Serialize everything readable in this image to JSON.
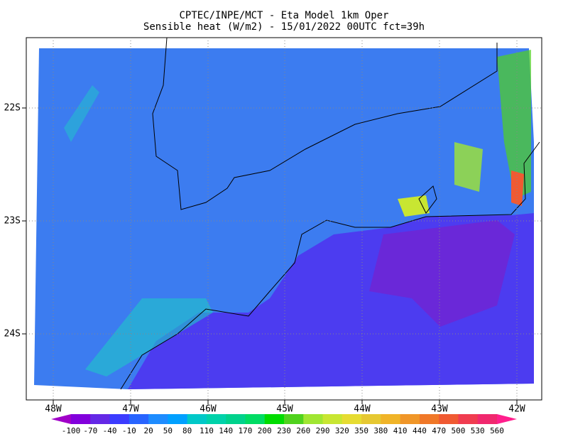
{
  "title": [
    "CPTEC/INPE/MCT -  Eta Model 1km Oper",
    "Sensible heat (W/m2) - 15/01/2022 00UTC fct=39h"
  ],
  "lat_labels": [
    "22S",
    "23S",
    "24S"
  ],
  "lon_labels": [
    "48W",
    "47W",
    "46W",
    "45W",
    "44W",
    "43W",
    "42W"
  ],
  "colorbar": {
    "labels": [
      "-100",
      "-70",
      "-40",
      "-10",
      "20",
      "50",
      "80",
      "110",
      "140",
      "170",
      "200",
      "230",
      "260",
      "290",
      "320",
      "350",
      "380",
      "410",
      "440",
      "470",
      "500",
      "530",
      "560"
    ],
    "colors": [
      "#a000c8",
      "#8200dc",
      "#6428e6",
      "#3c3cff",
      "#2864ff",
      "#1e8cff",
      "#00a0ff",
      "#00c8c8",
      "#00d2aa",
      "#00d28c",
      "#00dc64",
      "#00dc00",
      "#50d21e",
      "#a0e632",
      "#c8e632",
      "#e6dc32",
      "#e6c832",
      "#f0b428",
      "#f09628",
      "#f07828",
      "#f05a32",
      "#f03c50",
      "#f0286e",
      "#ff1e8c"
    ]
  }
}
